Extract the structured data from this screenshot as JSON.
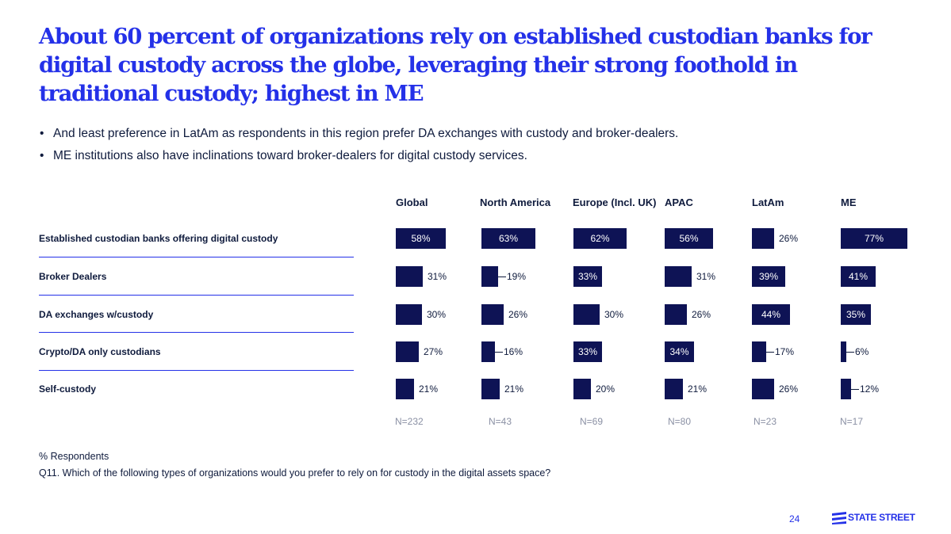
{
  "slide": {
    "title": "About 60 percent of organizations rely on established custodian banks for digital custody across the globe, leveraging their strong foothold in traditional custody; highest in ME",
    "bullets": [
      "And least preference in LatAm as respondents in this region prefer DA exchanges with custody and broker-dealers.",
      "ME institutions also have inclinations toward broker-dealers for digital custody services."
    ],
    "footnote_units": "% Respondents",
    "footnote_question": "Q11. Which of the following types of organizations would you prefer to rely on for custody in the digital assets space?",
    "page_number": "24",
    "logo_text": "STATE STREET"
  },
  "colors": {
    "title": "#2431e8",
    "bar": "#0e1355",
    "divider": "#2431e8",
    "n_text": "#8a90a4"
  },
  "chart_data": {
    "type": "bar",
    "orientation": "horizontal",
    "units": "% Respondents",
    "categories": [
      "Established custodian banks offering digital custody",
      "Broker Dealers",
      "DA exchanges w/custody",
      "Crypto/DA only custodians",
      "Self-custody"
    ],
    "series": [
      {
        "name": "Global",
        "n": "N=232",
        "values": [
          58,
          31,
          30,
          27,
          21
        ],
        "labels": [
          "58%",
          "31%",
          "30%",
          "27%",
          "21%"
        ]
      },
      {
        "name": "North America",
        "n": "N=43",
        "values": [
          63,
          19,
          26,
          16,
          21
        ],
        "labels": [
          "63%",
          "19%",
          "26%",
          "16%",
          "21%"
        ]
      },
      {
        "name": "Europe (Incl. UK)",
        "n": "N=69",
        "values": [
          62,
          33,
          30,
          33,
          20
        ],
        "labels": [
          "62%",
          "33%",
          "30%",
          "33%",
          "20%"
        ]
      },
      {
        "name": "APAC",
        "n": "N=80",
        "values": [
          56,
          31,
          26,
          34,
          21
        ],
        "labels": [
          "56%",
          "31%",
          "26%",
          "34%",
          "21%"
        ]
      },
      {
        "name": "LatAm",
        "n": "N=23",
        "values": [
          26,
          39,
          44,
          17,
          26
        ],
        "labels": [
          "26%",
          "39%",
          "44%",
          "17%",
          "26%"
        ]
      },
      {
        "name": "ME",
        "n": "N=17",
        "values": [
          77,
          41,
          35,
          6,
          12
        ],
        "labels": [
          "77%",
          "41%",
          "35%",
          "6%",
          "12%"
        ]
      }
    ]
  }
}
